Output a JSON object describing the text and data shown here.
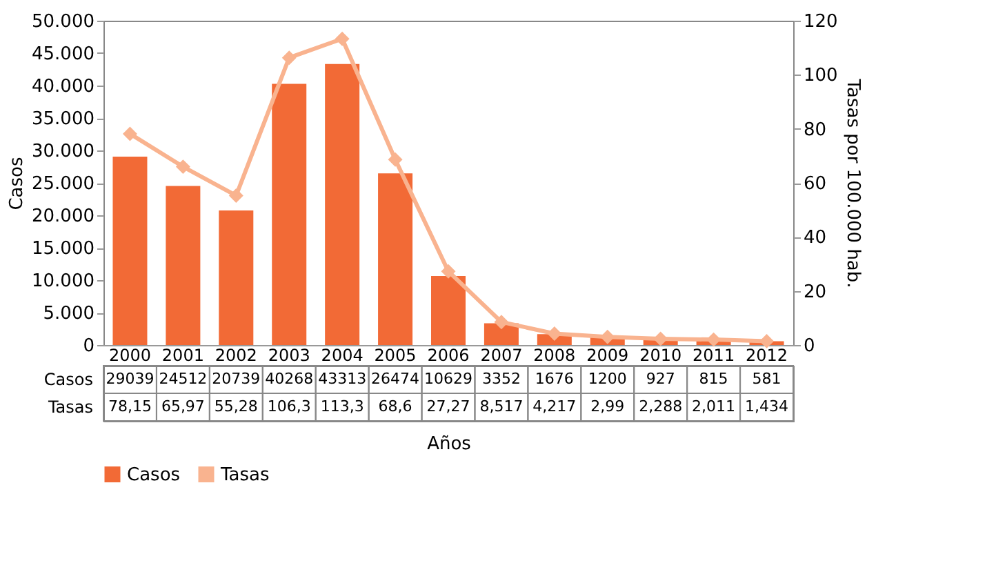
{
  "chart_data": {
    "type": "bar",
    "xlabel": "Años",
    "ylabel": "Casos",
    "y2label": "Tasas por 100.000 hab.",
    "categories": [
      "2000",
      "2001",
      "2002",
      "2003",
      "2004",
      "2005",
      "2006",
      "2007",
      "2008",
      "2009",
      "2010",
      "2011",
      "2012"
    ],
    "series": [
      {
        "name": "Casos",
        "color": "#f26a36",
        "values": [
          29039,
          24512,
          20739,
          40268,
          43313,
          26474,
          10629,
          3352,
          1676,
          1200,
          927,
          815,
          581
        ],
        "value_labels": [
          "29039",
          "24512",
          "20739",
          "40268",
          "43313",
          "26474",
          "10629",
          "3352",
          "1676",
          "1200",
          "927",
          "815",
          "581"
        ]
      },
      {
        "name": "Tasas",
        "type": "line",
        "axis": "y2",
        "color": "#f9b38f",
        "values": [
          78.15,
          65.97,
          55.28,
          106.3,
          113.3,
          68.6,
          27.27,
          8.517,
          4.217,
          2.99,
          2.288,
          2.011,
          1.434
        ],
        "value_labels": [
          "78,15",
          "65,97",
          "55,28",
          "106,3",
          "113,3",
          "68,6",
          "27,27",
          "8,517",
          "4,217",
          "2,99",
          "2,288",
          "2,011",
          "1,434"
        ]
      }
    ],
    "ylim": [
      0,
      50000
    ],
    "yticks": [
      0,
      {
        "value": 5000,
        "label": "5.000"
      },
      {
        "value": 10000,
        "label": "10.000"
      },
      {
        "value": 15000,
        "label": "15.000"
      },
      {
        "value": 20000,
        "label": "20.000"
      },
      {
        "value": 25000,
        "label": "25.000"
      },
      {
        "value": 30000,
        "label": "30.000"
      },
      {
        "value": 35000,
        "label": "35.000"
      },
      {
        "value": 40000,
        "label": "40.000"
      },
      {
        "value": 45000,
        "label": "45.000"
      },
      {
        "value": 50000,
        "label": "50.000"
      }
    ],
    "y2lim": [
      0,
      120
    ],
    "y2ticks": [
      0,
      20,
      40,
      60,
      80,
      100,
      120
    ],
    "marker": "diamond",
    "line_style": "solid",
    "grid": false,
    "legend": "bottom"
  }
}
